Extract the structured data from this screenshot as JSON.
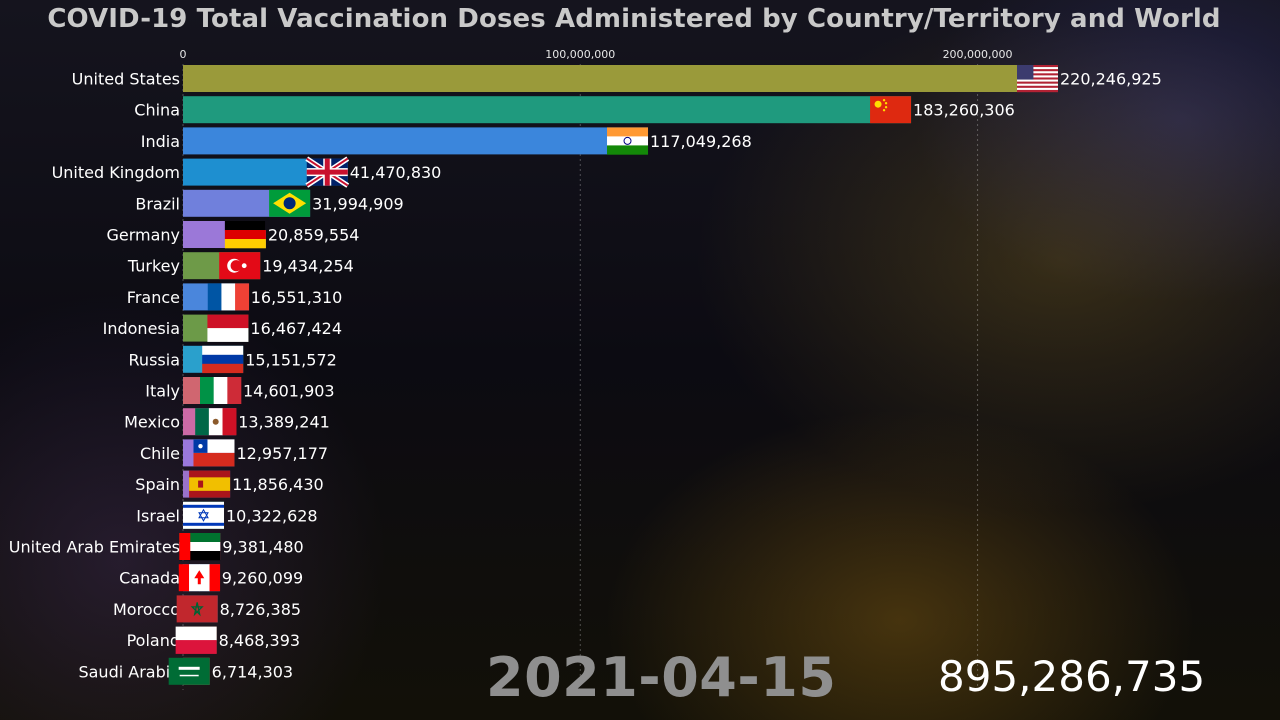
{
  "title": "COVID-19 Total Vaccination Doses Administered by Country/Territory and World",
  "date": "2021-04-15",
  "world_total": "895,286,735",
  "chart_data": {
    "type": "bar",
    "orientation": "horizontal",
    "title": "COVID-19 Total Vaccination Doses Administered by Country/Territory and World",
    "xlim": [
      0,
      220246925
    ],
    "x_ticks": [
      {
        "value": 0,
        "label": "0"
      },
      {
        "value": 100000000,
        "label": "100,000,000"
      },
      {
        "value": 200000000,
        "label": "200,000,000"
      }
    ],
    "grid": "vertical dashed",
    "categories": [
      "United States",
      "China",
      "India",
      "United Kingdom",
      "Brazil",
      "Germany",
      "Turkey",
      "France",
      "Indonesia",
      "Russia",
      "Italy",
      "Mexico",
      "Chile",
      "Spain",
      "Israel",
      "United Arab Emirates",
      "Canada",
      "Morocco",
      "Poland",
      "Saudi Arabia"
    ],
    "values": [
      220246925,
      183260306,
      117049268,
      41470830,
      31994909,
      20859554,
      19434254,
      16551310,
      16467424,
      15151572,
      14601903,
      13389241,
      12957177,
      11856430,
      10322628,
      9381480,
      9260099,
      8726385,
      8468393,
      6714303
    ],
    "value_labels": [
      "220,246,925",
      "183,260,306",
      "117,049,268",
      "41,470,830",
      "31,994,909",
      "20,859,554",
      "19,434,254",
      "16,551,310",
      "16,467,424",
      "15,151,572",
      "14,601,903",
      "13,389,241",
      "12,957,177",
      "11,856,430",
      "10,322,628",
      "9,381,480",
      "9,260,099",
      "8,726,385",
      "8,468,393",
      "6,714,303"
    ],
    "colors": [
      "#9a9a3a",
      "#1f9a7e",
      "#3b86dc",
      "#1e8fd0",
      "#7080dc",
      "#9b78d8",
      "#6e9a48",
      "#4a86dc",
      "#6c9a48",
      "#2aa0cc",
      "#d06670",
      "#cc6aa6",
      "#9a78dc",
      "#9a72cc",
      "#1f9a6a",
      "#d06070",
      "#4e88d6",
      "#2a92c8",
      "#cc7a52",
      "#c8865a"
    ],
    "flags": [
      "us-flag",
      "china-flag",
      "india-flag",
      "uk-flag",
      "brazil-flag",
      "germany-flag",
      "turkey-flag",
      "france-flag",
      "indonesia-flag",
      "russia-flag",
      "italy-flag",
      "mexico-flag",
      "chile-flag",
      "spain-flag",
      "israel-flag",
      "uae-flag",
      "canada-flag",
      "morocco-flag",
      "poland-flag",
      "saudi-arabia-flag"
    ]
  }
}
